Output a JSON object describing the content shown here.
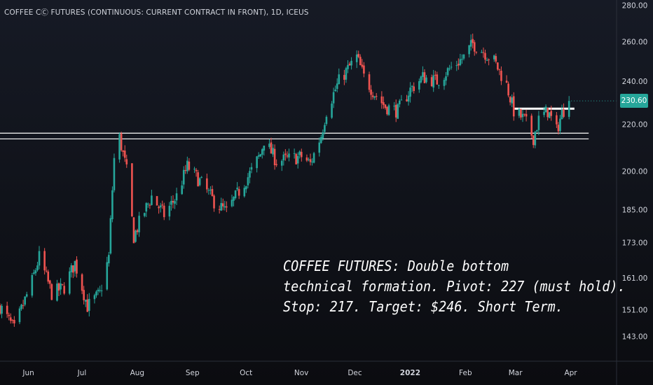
{
  "symbol_title": "COFFEE CⒸ FUTURES (CONTINUOUS: CURRENT CONTRACT IN FRONT), 1D, ICEUS",
  "annotation": {
    "line1": "COFFEE FUTURES: Double bottom",
    "line2": "technical formation. Pivot: 227 (must hold).",
    "line3": "Stop: 217. Target: $246. Short Term."
  },
  "last_price": "230.60",
  "colors": {
    "background": "#131722",
    "up": "#26a69a",
    "down": "#ef5350",
    "axis_text": "#d1d4dc",
    "level_line": "#ffffff",
    "price_badge": "#26a69a"
  },
  "chart_data": {
    "type": "candlestick",
    "title": "COFFEE CⒸ FUTURES (CONTINUOUS: CURRENT CONTRACT IN FRONT), 1D, ICEUS",
    "y_scale": "log",
    "ylim": [
      136,
      283
    ],
    "y_ticks": [
      "143.00",
      "151.00",
      "161.00",
      "173.00",
      "185.00",
      "200.00",
      "220.00",
      "240.00",
      "260.00",
      "280.00"
    ],
    "x_ticks": [
      "Jun",
      "Jul",
      "Aug",
      "Sep",
      "Oct",
      "Nov",
      "Dec",
      "2022",
      "Feb",
      "Mar",
      "Apr"
    ],
    "grid": false,
    "legend": "none",
    "price_path": [
      {
        "date": "2021-05-20",
        "close": 152
      },
      {
        "date": "2021-05-28",
        "close": 145
      },
      {
        "date": "2021-06-07",
        "close": 160
      },
      {
        "date": "2021-06-11",
        "close": 168
      },
      {
        "date": "2021-06-18",
        "close": 156
      },
      {
        "date": "2021-06-25",
        "close": 158
      },
      {
        "date": "2021-07-01",
        "close": 166
      },
      {
        "date": "2021-07-08",
        "close": 152
      },
      {
        "date": "2021-07-15",
        "close": 156
      },
      {
        "date": "2021-07-20",
        "close": 168
      },
      {
        "date": "2021-07-23",
        "close": 205
      },
      {
        "date": "2021-07-26",
        "close": 214
      },
      {
        "date": "2021-07-30",
        "close": 200
      },
      {
        "date": "2021-08-03",
        "close": 175
      },
      {
        "date": "2021-08-06",
        "close": 180
      },
      {
        "date": "2021-08-13",
        "close": 190
      },
      {
        "date": "2021-08-20",
        "close": 183
      },
      {
        "date": "2021-08-27",
        "close": 190
      },
      {
        "date": "2021-09-02",
        "close": 202
      },
      {
        "date": "2021-09-09",
        "close": 196
      },
      {
        "date": "2021-09-17",
        "close": 188
      },
      {
        "date": "2021-09-24",
        "close": 184
      },
      {
        "date": "2021-10-01",
        "close": 192
      },
      {
        "date": "2021-10-08",
        "close": 200
      },
      {
        "date": "2021-10-13",
        "close": 207
      },
      {
        "date": "2021-10-15",
        "close": 213
      },
      {
        "date": "2021-10-22",
        "close": 204
      },
      {
        "date": "2021-10-29",
        "close": 205
      },
      {
        "date": "2021-11-05",
        "close": 206
      },
      {
        "date": "2021-11-10",
        "close": 203
      },
      {
        "date": "2021-11-16",
        "close": 215
      },
      {
        "date": "2021-11-19",
        "close": 226
      },
      {
        "date": "2021-11-26",
        "close": 240
      },
      {
        "date": "2021-12-01",
        "close": 246
      },
      {
        "date": "2021-12-06",
        "close": 252
      },
      {
        "date": "2021-12-10",
        "close": 242
      },
      {
        "date": "2021-12-16",
        "close": 234
      },
      {
        "date": "2021-12-22",
        "close": 228
      },
      {
        "date": "2021-12-29",
        "close": 226
      },
      {
        "date": "2022-01-05",
        "close": 236
      },
      {
        "date": "2022-01-12",
        "close": 242
      },
      {
        "date": "2022-01-20",
        "close": 240
      },
      {
        "date": "2022-01-27",
        "close": 246
      },
      {
        "date": "2022-02-04",
        "close": 252
      },
      {
        "date": "2022-02-09",
        "close": 259
      },
      {
        "date": "2022-02-15",
        "close": 255
      },
      {
        "date": "2022-02-21",
        "close": 250
      },
      {
        "date": "2022-02-28",
        "close": 238
      },
      {
        "date": "2022-03-04",
        "close": 226
      },
      {
        "date": "2022-03-10",
        "close": 222
      },
      {
        "date": "2022-03-15",
        "close": 214
      },
      {
        "date": "2022-03-18",
        "close": 222
      },
      {
        "date": "2022-03-23",
        "close": 226
      },
      {
        "date": "2022-03-28",
        "close": 217
      },
      {
        "date": "2022-03-31",
        "close": 225
      },
      {
        "date": "2022-04-04",
        "close": 230.6
      }
    ],
    "horizontal_levels": [
      {
        "value": 213.5,
        "from": "2021-05-20",
        "to": "2022-04-15"
      },
      {
        "value": 216,
        "from": "2021-05-20",
        "to": "2022-04-15"
      },
      {
        "value": 227,
        "from": "2022-03-04",
        "to": "2022-04-07"
      }
    ],
    "last_price": 230.6
  }
}
